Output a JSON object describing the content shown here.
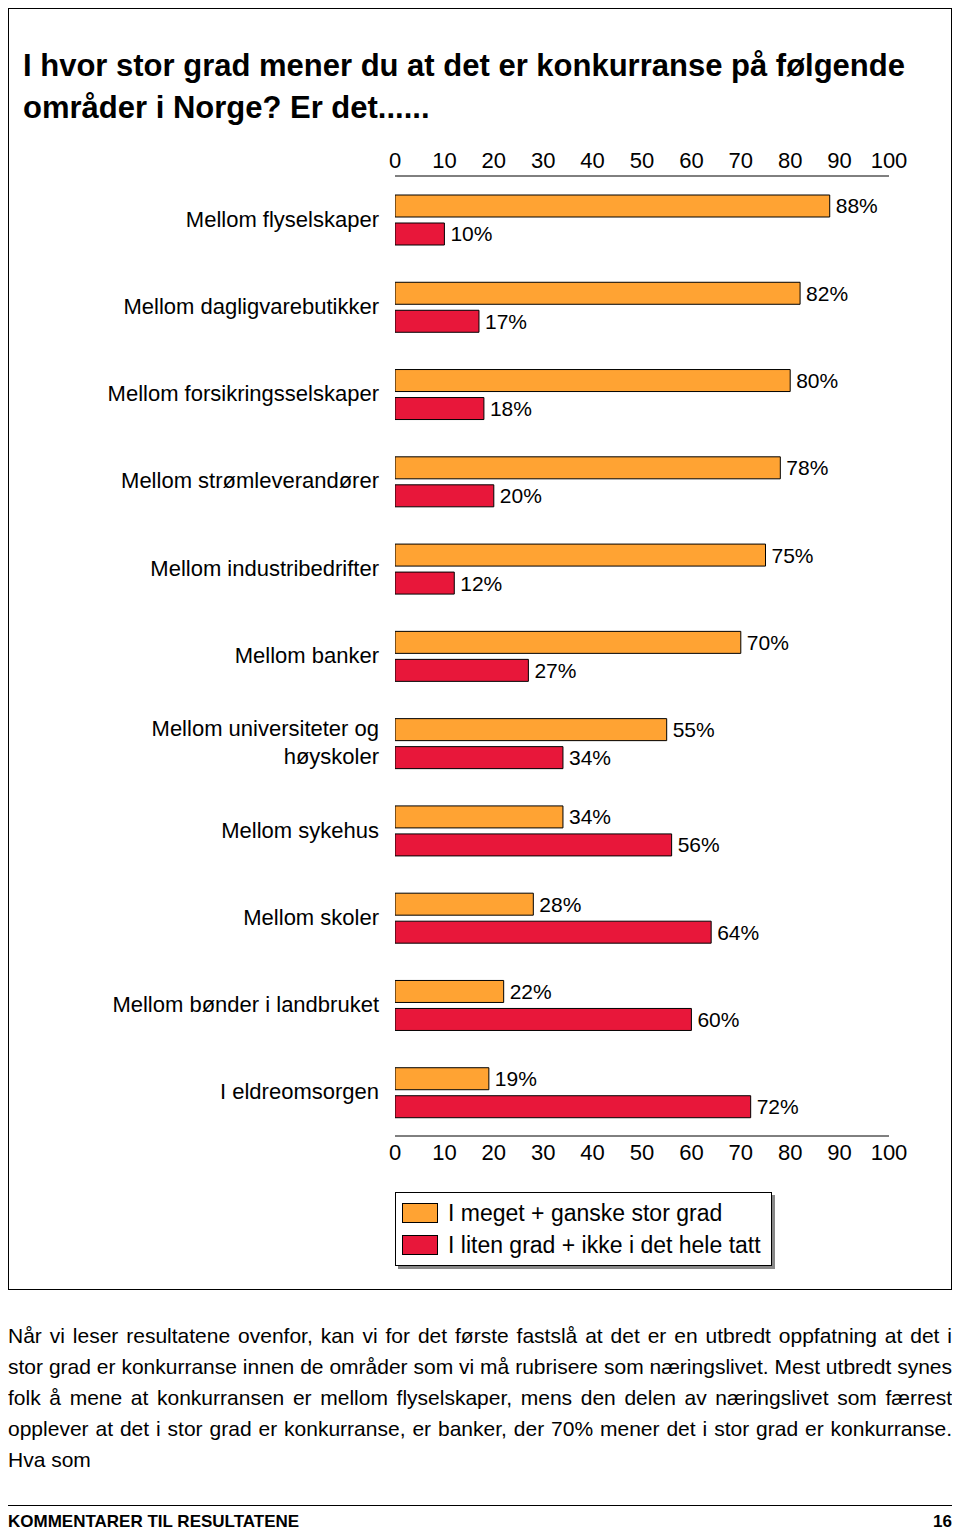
{
  "chart_data": {
    "type": "bar",
    "title": "I hvor stor grad mener du at det er konkurranse på følgende områder i Norge?  Er det......",
    "orientation": "horizontal",
    "categories": [
      "Mellom flyselskaper",
      "Mellom dagligvarebutikker",
      "Mellom forsikringsselskaper",
      "Mellom strømleverandører",
      "Mellom industribedrifter",
      "Mellom banker",
      "Mellom universiteter og høyskoler",
      "Mellom sykehus",
      "Mellom skoler",
      "Mellom bønder i landbruket",
      "I eldreomsorgen"
    ],
    "series": [
      {
        "name": "I meget + ganske stor grad",
        "color": "#ffa333",
        "values": [
          88,
          82,
          80,
          78,
          75,
          70,
          55,
          34,
          28,
          22,
          19
        ],
        "value_labels": [
          "88%",
          "82%",
          "80%",
          "78%",
          "75%",
          "70%",
          "55%",
          "34%",
          "28%",
          "22%",
          "19%"
        ]
      },
      {
        "name": "I liten grad + ikke i det hele tatt",
        "color": "#e8173a",
        "values": [
          10,
          17,
          18,
          20,
          12,
          27,
          34,
          56,
          64,
          60,
          72
        ],
        "value_labels": [
          "10%",
          "17%",
          "18%",
          "20%",
          "12%",
          "27%",
          "34%",
          "56%",
          "64%",
          "60%",
          "72%"
        ]
      }
    ],
    "xlim": [
      0,
      100
    ],
    "xticks": [
      0,
      10,
      20,
      30,
      40,
      50,
      60,
      70,
      80,
      90,
      100
    ],
    "data_labels": true,
    "legend": "bottom"
  },
  "text": {
    "paragraph": "Når vi leser resultatene ovenfor, kan vi for det første fastslå at det er en utbredt oppfatning at det i stor grad er konkurranse innen de områder som vi må rubrisere som næringslivet. Mest utbredt synes folk å mene at konkurransen er mellom flyselskaper, mens den delen av næringslivet som færrest opplever at det i stor grad er konkurranse, er banker, der 70% mener det i stor grad er konkurranse. Hva som",
    "footer": "KOMMENTARER TIL RESULTATENE",
    "page_number": 16
  }
}
